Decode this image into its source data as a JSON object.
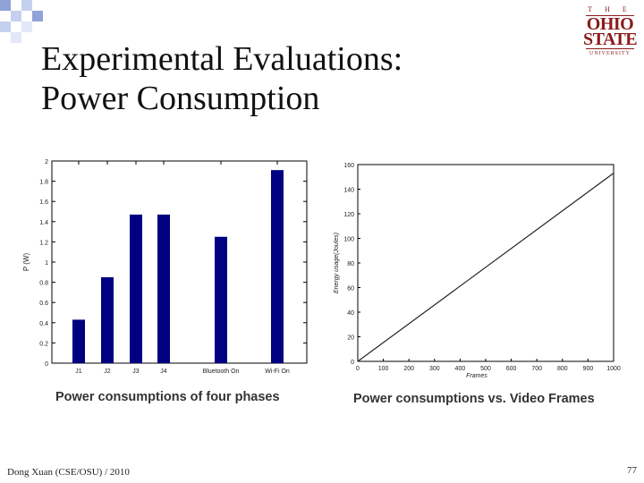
{
  "slide": {
    "title_line1": "Experimental Evaluations:",
    "title_line2": "Power Consumption",
    "footer_left": "Dong Xuan (CSE/OSU) / 2010",
    "page_number": "77",
    "logo": {
      "top": "T H E",
      "line1": "OHIO",
      "line2": "STATE",
      "bottom": "UNIVERSITY"
    }
  },
  "captions": {
    "left": "Power consumptions of four phases",
    "right": "Power consumptions vs. Video Frames"
  },
  "colors": {
    "bar": "#000080",
    "line": "#222222",
    "logo": "#8b1a1a",
    "deco": "#8fa3d9"
  },
  "chart_data": [
    {
      "type": "bar",
      "categories": [
        "J1",
        "J2",
        "J3",
        "J4",
        "Bluetooth On",
        "Wi-Fi On"
      ],
      "values": [
        0.43,
        0.85,
        1.47,
        1.47,
        1.25,
        1.91
      ],
      "ylabel": "P (W)",
      "xlabel": "",
      "ylim": [
        0,
        2
      ],
      "yticks": [
        "0",
        "0.2",
        "0.4",
        "0.6",
        "0.8",
        "1",
        "1.2",
        "1.4",
        "1.6",
        "1.8",
        "2"
      ],
      "grid": false
    },
    {
      "type": "line",
      "x": [
        0,
        1000
      ],
      "y": [
        0,
        153
      ],
      "xlabel": "Frames",
      "ylabel": "Energy usage(Joules)",
      "xlim": [
        0,
        1000
      ],
      "ylim": [
        0,
        160
      ],
      "xticks": [
        "0",
        "100",
        "200",
        "300",
        "400",
        "500",
        "600",
        "700",
        "800",
        "900",
        "1000"
      ],
      "yticks": [
        "0",
        "20",
        "40",
        "60",
        "80",
        "100",
        "120",
        "140",
        "160"
      ],
      "grid": false
    }
  ]
}
